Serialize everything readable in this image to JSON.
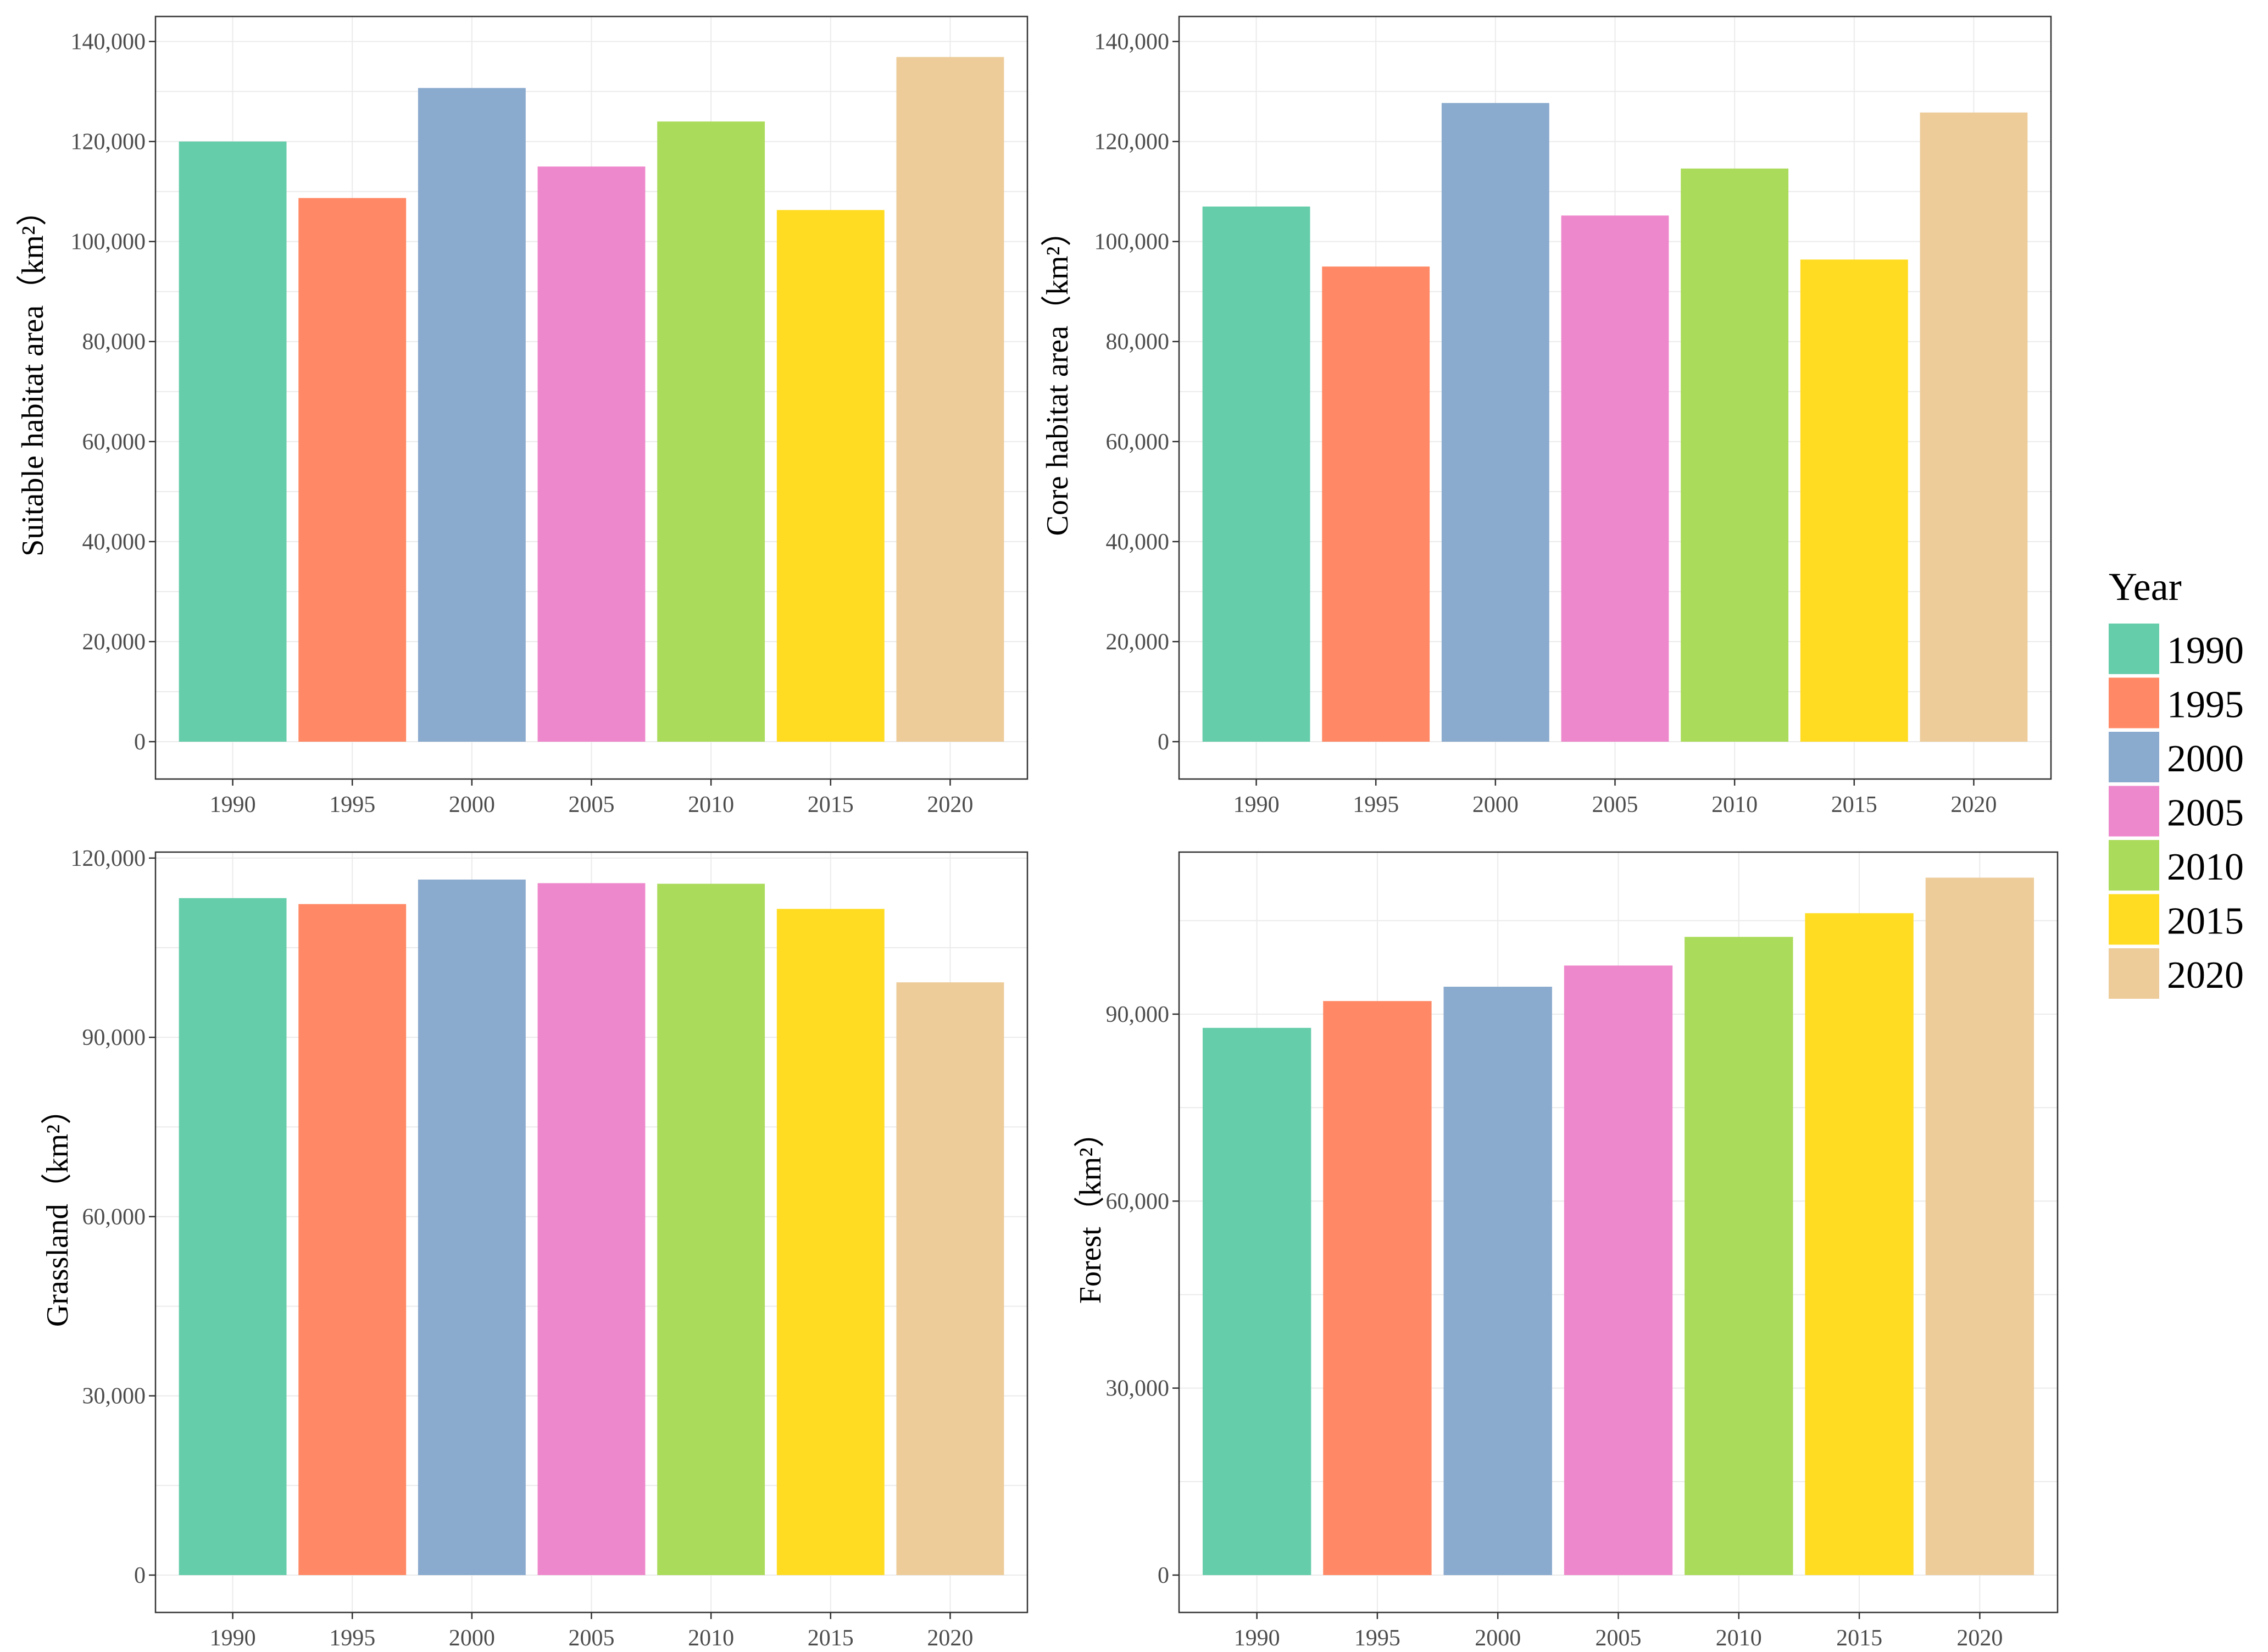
{
  "chart_data": [
    {
      "type": "bar",
      "categories": [
        "1990",
        "1995",
        "2000",
        "2005",
        "2010",
        "2015",
        "2020"
      ],
      "values": [
        120000,
        108700,
        130700,
        115000,
        124000,
        106300,
        136900
      ],
      "ylabel": "Suitable habitat area（km²）",
      "ylim": [
        0,
        145000
      ],
      "yticks": [
        0,
        20000,
        40000,
        60000,
        80000,
        100000,
        120000,
        140000
      ],
      "ytick_labels": [
        "0",
        "20,000",
        "40,000",
        "60,000",
        "80,000",
        "100,000",
        "120,000",
        "140,000"
      ],
      "grid": true
    },
    {
      "type": "bar",
      "categories": [
        "1990",
        "1995",
        "2000",
        "2005",
        "2010",
        "2015",
        "2020"
      ],
      "values": [
        107000,
        95000,
        127700,
        105200,
        114600,
        96400,
        125800
      ],
      "ylabel": "Core habitat area（km²）",
      "ylim": [
        0,
        145000
      ],
      "yticks": [
        0,
        20000,
        40000,
        60000,
        80000,
        100000,
        120000,
        140000
      ],
      "ytick_labels": [
        "0",
        "20,000",
        "40,000",
        "60,000",
        "80,000",
        "100,000",
        "120,000",
        "140,000"
      ],
      "grid": true
    },
    {
      "type": "bar",
      "categories": [
        "1990",
        "1995",
        "2000",
        "2005",
        "2010",
        "2015",
        "2020"
      ],
      "values": [
        113300,
        112300,
        116400,
        115800,
        115700,
        111500,
        99200
      ],
      "ylabel": "Grassland（km²）",
      "ylim": [
        0,
        121000
      ],
      "yticks": [
        0,
        30000,
        60000,
        90000,
        120000
      ],
      "ytick_labels": [
        "0",
        "30,000",
        "60,000",
        "90,000",
        "120,000"
      ],
      "grid": true
    },
    {
      "type": "bar",
      "categories": [
        "1990",
        "1995",
        "2000",
        "2005",
        "2010",
        "2015",
        "2020"
      ],
      "values": [
        87800,
        92100,
        94400,
        97800,
        102400,
        106200,
        111900
      ],
      "ylabel": "Forest（km²）",
      "ylim": [
        0,
        116000
      ],
      "yticks": [
        0,
        30000,
        60000,
        90000
      ],
      "ytick_labels": [
        "0",
        "30,000",
        "60,000",
        "90,000"
      ],
      "grid": true
    }
  ],
  "legend": {
    "title": "Year",
    "position": "right",
    "items": [
      {
        "label": "1990",
        "color": "#66CDAA"
      },
      {
        "label": "1995",
        "color": "#FF8966"
      },
      {
        "label": "2000",
        "color": "#8AAACE"
      },
      {
        "label": "2005",
        "color": "#EE88CC"
      },
      {
        "label": "2010",
        "color": "#AADB5A"
      },
      {
        "label": "2015",
        "color": "#FFDC22"
      },
      {
        "label": "2020",
        "color": "#EDCC9A"
      }
    ]
  }
}
